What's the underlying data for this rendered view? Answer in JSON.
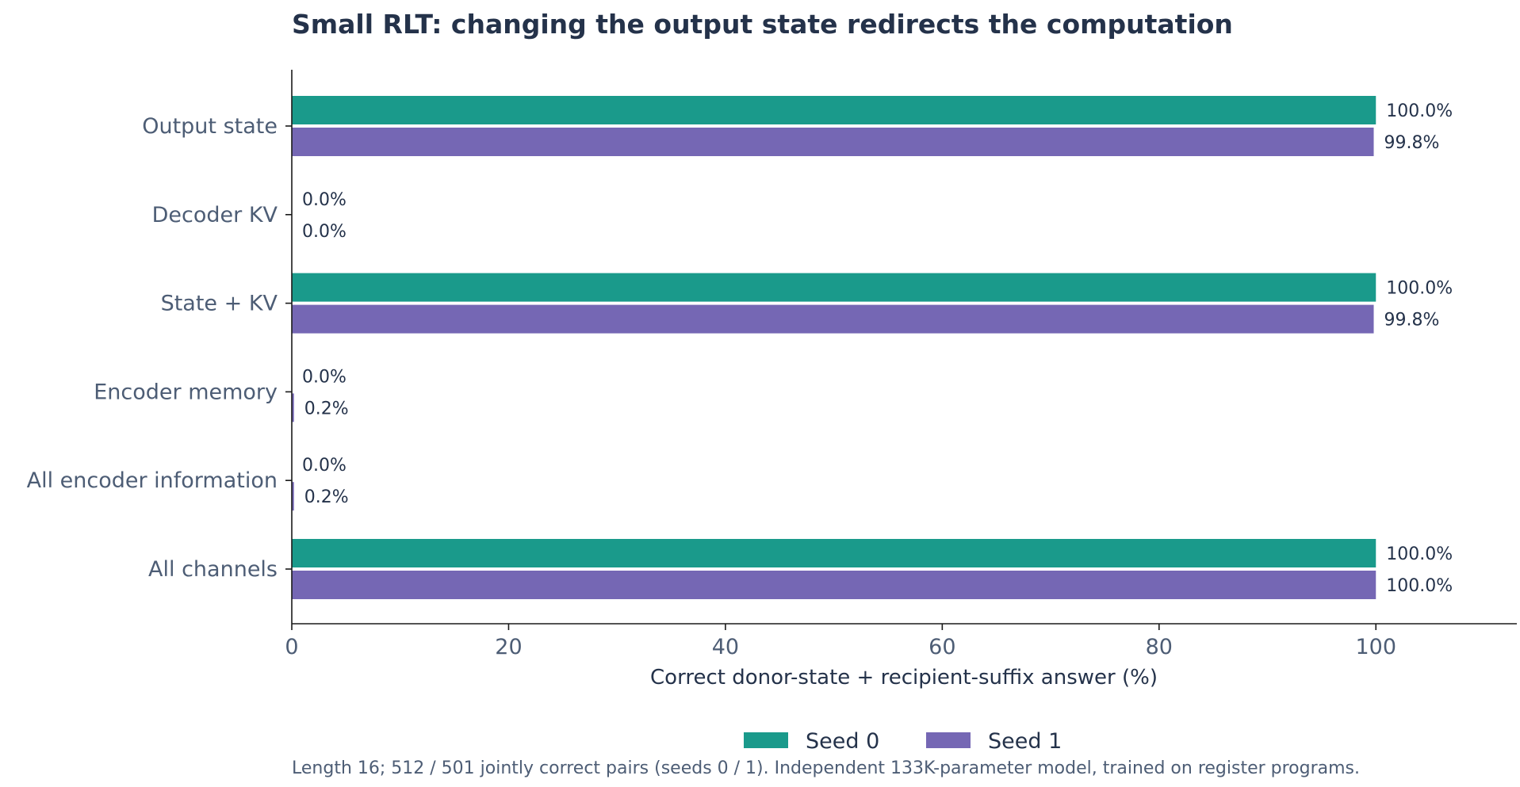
{
  "chart_data": {
    "type": "bar",
    "orientation": "horizontal",
    "title": "Small RLT: changing the output state redirects the computation",
    "xlabel": "Correct donor-state + recipient-suffix answer (%)",
    "ylabel": "",
    "xlim": [
      0,
      113
    ],
    "xticks": [
      0,
      20,
      40,
      60,
      80,
      100
    ],
    "xtick_labels": [
      "0",
      "20",
      "40",
      "60",
      "80",
      "100"
    ],
    "categories": [
      "Output state",
      "Decoder KV",
      "State + KV",
      "Encoder memory",
      "All encoder information",
      "All channels"
    ],
    "series": [
      {
        "name": "Seed 0",
        "color": "#1a9a8b",
        "values": [
          100.0,
          0.0,
          100.0,
          0.0,
          0.0,
          100.0
        ],
        "labels": [
          "100.0%",
          "0.0%",
          "100.0%",
          "0.0%",
          "0.0%",
          "100.0%"
        ]
      },
      {
        "name": "Seed 1",
        "color": "#7567b4",
        "values": [
          99.8,
          0.0,
          99.8,
          0.2,
          0.2,
          100.0
        ],
        "labels": [
          "99.8%",
          "0.0%",
          "99.8%",
          "0.2%",
          "0.2%",
          "100.0%"
        ]
      }
    ],
    "grid": false,
    "legend_position": "bottom-center",
    "footnote": "Length 16; 512 / 501 jointly correct pairs (seeds 0 / 1). Independent 133K-parameter model, trained on register programs."
  }
}
